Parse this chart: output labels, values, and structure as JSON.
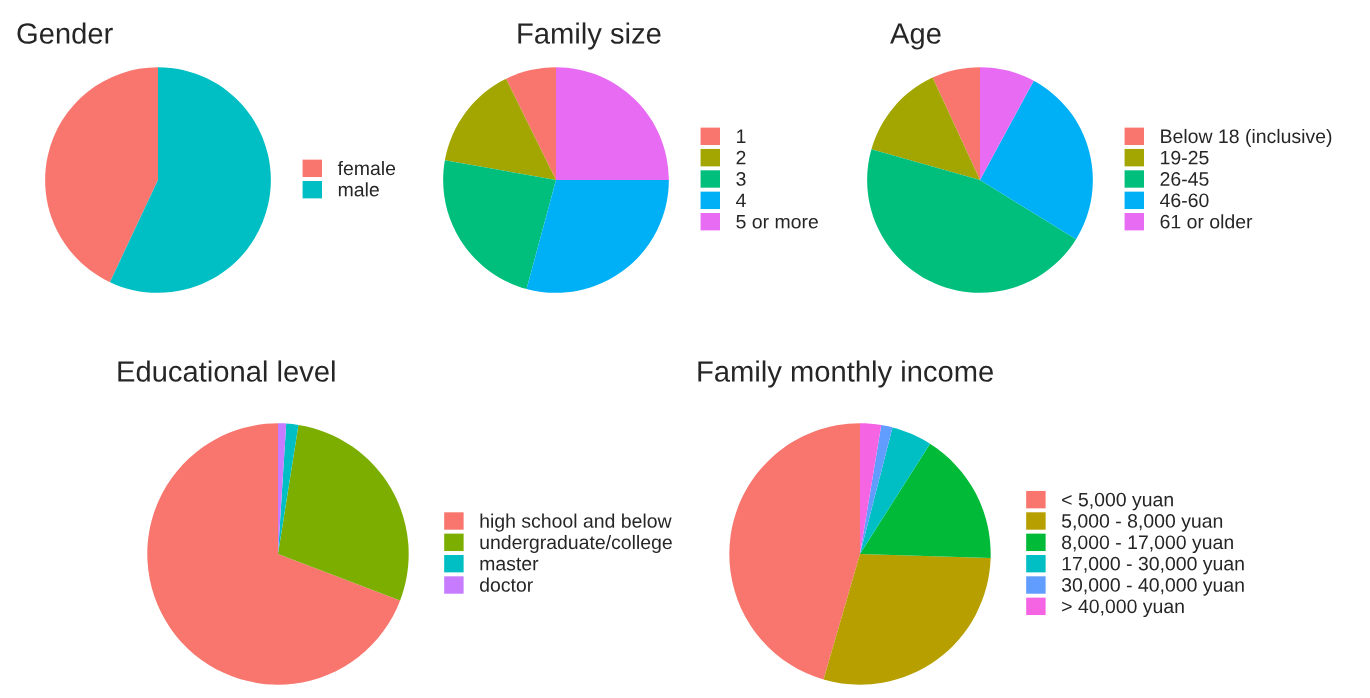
{
  "chart_data": [
    {
      "type": "pie",
      "title": "Gender",
      "categories": [
        "female",
        "male"
      ],
      "values": [
        43,
        57
      ],
      "colors": [
        "#f8766d",
        "#00bfc4"
      ],
      "legend": "right"
    },
    {
      "type": "pie",
      "title": "Family size",
      "categories": [
        "1",
        "2",
        "3",
        "4",
        "5 or more"
      ],
      "values": [
        7.3,
        14.9,
        23.6,
        29.2,
        25
      ],
      "colors": [
        "#f8766d",
        "#a3a500",
        "#00bf7d",
        "#00b0f6",
        "#e76bf3"
      ],
      "legend": "right"
    },
    {
      "type": "pie",
      "title": "Age",
      "categories": [
        "Below 18 (inclusive)",
        "19-25",
        "26-45",
        "46-60",
        "61 or older"
      ],
      "values": [
        6.9,
        13.7,
        45.6,
        25.9,
        7.9
      ],
      "colors": [
        "#f8766d",
        "#a3a500",
        "#00bf7d",
        "#00b0f6",
        "#e76bf3"
      ],
      "legend": "right"
    },
    {
      "type": "pie",
      "title": "Educational level",
      "categories": [
        "high school and below",
        "undergraduate/college",
        "master",
        "doctor"
      ],
      "values": [
        69.2,
        28.3,
        1.5,
        1.0
      ],
      "colors": [
        "#f8766d",
        "#7cae00",
        "#00bfc4",
        "#c77cff"
      ],
      "legend": "right"
    },
    {
      "type": "pie",
      "title": "Family monthly income",
      "categories": [
        "< 5,000 yuan",
        "5,000 - 8,000 yuan",
        "8,000 - 17,000 yuan",
        "17,000 - 30,000 yuan",
        "30,000 - 40,000 yuan",
        "> 40,000 yuan"
      ],
      "values": [
        45.5,
        29,
        16.5,
        5,
        1.4,
        2.6
      ],
      "colors": [
        "#f8766d",
        "#b79f00",
        "#00ba38",
        "#00bfc4",
        "#619cff",
        "#f564e3"
      ],
      "legend": "right"
    }
  ]
}
